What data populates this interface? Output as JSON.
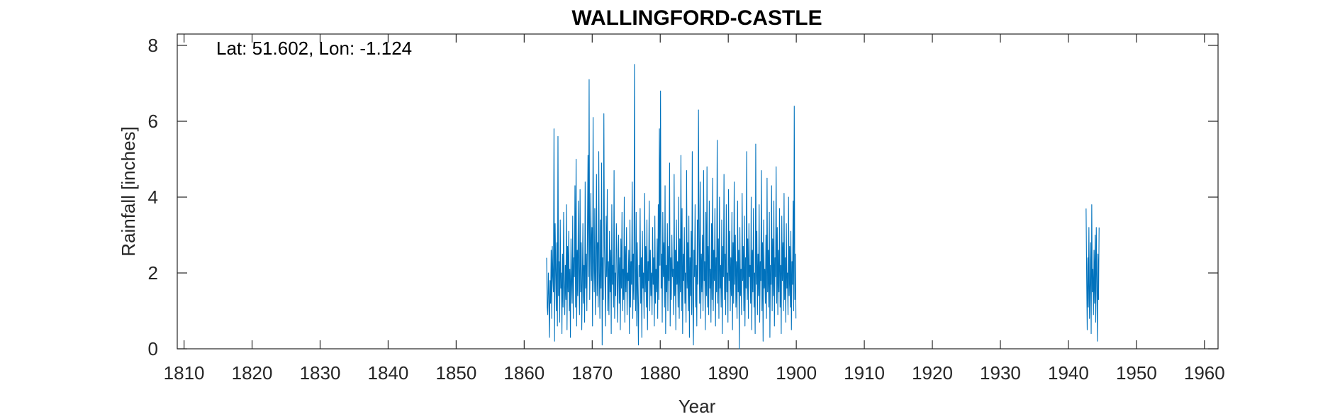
{
  "chart_data": {
    "type": "line",
    "title": "WALLINGFORD-CASTLE",
    "annotation": "Lat: 51.602, Lon: -1.124",
    "xlabel": "Year",
    "ylabel": "Rainfall [inches]",
    "xlim": [
      1809,
      1962
    ],
    "ylim": [
      0,
      8.3
    ],
    "xticks": [
      1810,
      1820,
      1830,
      1840,
      1850,
      1860,
      1870,
      1880,
      1890,
      1900,
      1910,
      1920,
      1930,
      1940,
      1950,
      1960
    ],
    "yticks": [
      0,
      2,
      4,
      6,
      8
    ],
    "grid": false,
    "series": [
      {
        "color": "#0072BD",
        "x_start": 1863.3,
        "x_step": 0.0833,
        "gaps": [
          [
            1940.9,
            1942.6
          ]
        ],
        "values": [
          2.4,
          1.1,
          0.9,
          2.0,
          1.4,
          0.3,
          1.8,
          1.2,
          2.6,
          0.8,
          2.7,
          1.9,
          1.5,
          5.8,
          0.2,
          3.3,
          2.1,
          1.0,
          2.8,
          0.6,
          5.6,
          1.4,
          2.3,
          0.7,
          3.4,
          1.6,
          2.0,
          0.4,
          2.5,
          1.1,
          3.6,
          1.8,
          0.9,
          2.2,
          1.3,
          3.8,
          0.5,
          2.7,
          1.5,
          3.1,
          1.0,
          2.1,
          0.3,
          2.9,
          1.7,
          1.2,
          3.5,
          0.8,
          2.4,
          1.9,
          4.3,
          1.1,
          5.0,
          0.6,
          2.6,
          1.4,
          3.9,
          2.0,
          0.9,
          4.2,
          1.5,
          2.8,
          0.5,
          1.8,
          3.3,
          1.2,
          2.2,
          0.7,
          4.4,
          1.6,
          2.5,
          1.0,
          3.0,
          5.1,
          1.9,
          7.1,
          1.3,
          2.6,
          4.1,
          1.8,
          3.2,
          0.6,
          6.1,
          2.3,
          1.5,
          3.7,
          0.9,
          2.1,
          4.6,
          1.4,
          2.8,
          1.1,
          5.2,
          2.0,
          0.8,
          3.4,
          1.6,
          4.9,
          0.1,
          2.4,
          1.3,
          6.2,
          2.7,
          1.8,
          0.6,
          3.5,
          1.9,
          4.2,
          1.0,
          2.3,
          0.9,
          3.1,
          1.5,
          2.6,
          0.4,
          3.8,
          1.7,
          2.2,
          1.1,
          4.7,
          0.8,
          2.0,
          1.4,
          3.3,
          2.6,
          0.7,
          1.8,
          3.0,
          1.2,
          2.4,
          0.5,
          2.9,
          1.6,
          3.6,
          1.0,
          2.1,
          1.3,
          4.0,
          0.7,
          2.7,
          1.5,
          3.2,
          0.9,
          2.0,
          1.8,
          2.6,
          0.4,
          3.4,
          1.1,
          2.3,
          1.7,
          4.4,
          0.8,
          2.5,
          1.3,
          7.5,
          2.1,
          1.0,
          3.6,
          0.6,
          2.8,
          1.4,
          0.1,
          2.2,
          1.9,
          3.7,
          1.2,
          2.4,
          0.3,
          3.1,
          1.6,
          2.0,
          0.8,
          4.1,
          1.5,
          2.7,
          1.1,
          3.4,
          0.5,
          2.3,
          1.8,
          3.9,
          1.0,
          2.6,
          1.4,
          2.0,
          0.9,
          3.2,
          1.7,
          2.4,
          0.6,
          3.5,
          1.2,
          2.1,
          1.5,
          2.9,
          0.8,
          3.8,
          1.3,
          5.8,
          2.2,
          6.8,
          1.6,
          2.5,
          0.7,
          3.6,
          1.9,
          2.8,
          1.1,
          4.3,
          0.4,
          2.2,
          1.5,
          3.3,
          1.0,
          2.7,
          1.8,
          4.9,
          0.6,
          2.4,
          1.3,
          3.0,
          1.9,
          2.1,
          0.9,
          4.6,
          1.4,
          2.6,
          0.5,
          3.4,
          1.7,
          2.3,
          1.1,
          4.0,
          0.8,
          2.9,
          1.5,
          5.1,
          1.0,
          3.7,
          0.4,
          2.5,
          1.8,
          3.2,
          1.2,
          2.0,
          0.7,
          4.7,
          1.6,
          2.8,
          1.0,
          3.5,
          0.3,
          2.4,
          1.4,
          3.1,
          0.9,
          5.2,
          1.3,
          0.1,
          2.6,
          1.9,
          3.8,
          1.1,
          2.2,
          0.6,
          3.4,
          1.7,
          6.3,
          2.9,
          1.2,
          4.4,
          0.8,
          2.5,
          1.5,
          3.0,
          1.0,
          4.7,
          1.8,
          2.3,
          0.5,
          3.6,
          1.4,
          4.8,
          1.1,
          2.7,
          0.9,
          3.9,
          1.6,
          2.1,
          0.7,
          3.3,
          1.3,
          4.5,
          1.0,
          2.6,
          1.8,
          3.7,
          0.6,
          2.4,
          1.5,
          5.5,
          1.2,
          2.9,
          0.8,
          4.0,
          1.6,
          2.2,
          1.1,
          3.4,
          0.4,
          2.7,
          1.9,
          4.6,
          1.3,
          2.5,
          0.9,
          3.8,
          1.5,
          2.0,
          0.7,
          4.2,
          1.8,
          3.1,
          1.0,
          2.4,
          1.4,
          3.6,
          0.5,
          2.8,
          1.2,
          4.4,
          1.7,
          3.0,
          1.1,
          2.3,
          0.8,
          3.9,
          1.5,
          2.6,
          0.0,
          3.2,
          1.4,
          2.1,
          0.9,
          4.1,
          1.8,
          2.7,
          1.0,
          3.5,
          0.6,
          2.4,
          1.6,
          5.2,
          1.3,
          2.9,
          0.8,
          3.3,
          1.9,
          2.2,
          1.2,
          4.0,
          0.5,
          2.6,
          1.5,
          3.7,
          1.1,
          2.0,
          0.4,
          5.4,
          1.7,
          3.1,
          0.9,
          2.5,
          1.4,
          3.8,
          0.7,
          2.3,
          1.8,
          4.7,
          1.0,
          2.8,
          0.2,
          3.4,
          1.6,
          2.1,
          1.2,
          3.0,
          0.8,
          4.5,
          1.5,
          2.6,
          1.1,
          3.6,
          0.3,
          2.2,
          1.7,
          4.3,
          1.0,
          2.9,
          1.4,
          3.9,
          0.6,
          2.4,
          1.9,
          4.8,
          1.2,
          3.2,
          0.9,
          2.6,
          1.5,
          3.7,
          1.1,
          2.2,
          0.4,
          3.5,
          1.8,
          2.8,
          1.0,
          4.1,
          1.3,
          2.4,
          0.7,
          3.3,
          1.6,
          2.0,
          0.9,
          4.0,
          1.4,
          2.7,
          1.1,
          3.1,
          0.5,
          2.3,
          1.7,
          3.9,
          1.0,
          6.4,
          1.3,
          2.5,
          0.8
        ]
      },
      {
        "color": "#0072BD",
        "x_start": 1942.6,
        "x_step": 0.0833,
        "values": [
          3.7,
          1.9,
          0.5,
          2.4,
          1.1,
          3.2,
          0.8,
          1.6,
          2.8,
          0.4,
          3.8,
          1.5,
          2.1,
          0.9,
          2.6,
          1.2,
          3.0,
          0.7,
          3.2,
          1.8,
          0.2,
          2.5,
          1.3,
          3.2
        ]
      }
    ]
  }
}
